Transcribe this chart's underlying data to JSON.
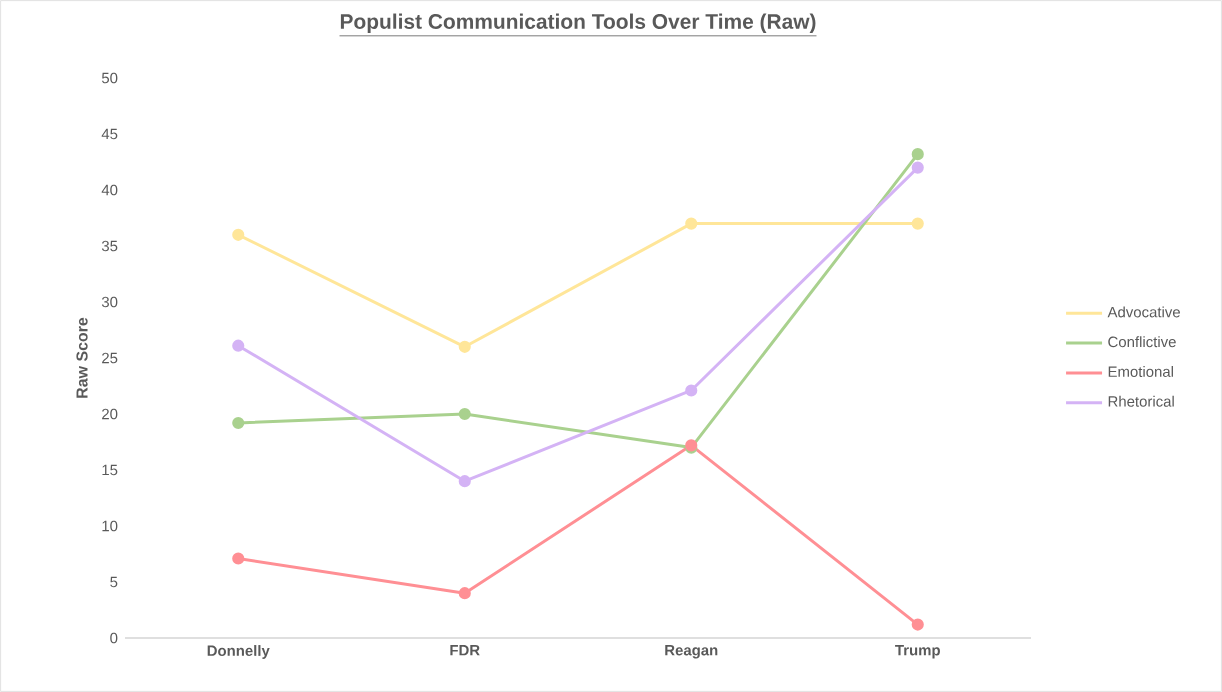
{
  "chart_data": {
    "type": "line",
    "title": "Populist Communication Tools Over Time (Raw)",
    "ylabel": "Raw Score",
    "categories": [
      "Donnelly",
      "FDR",
      "Reagan",
      "Trump"
    ],
    "series": [
      {
        "name": "Advocative",
        "color": "#ffe699",
        "values": [
          36,
          26,
          37,
          37
        ]
      },
      {
        "name": "Conflictive",
        "color": "#a9d18e",
        "values": [
          19.2,
          20,
          17,
          43.2
        ]
      },
      {
        "name": "Emotional",
        "color": "#ff8f94",
        "values": [
          7.1,
          4,
          17.2,
          1.2
        ]
      },
      {
        "name": "Rhetorical",
        "color": "#d4b3f5",
        "values": [
          26.1,
          14,
          22.1,
          42
        ]
      }
    ],
    "ylim": [
      0,
      50
    ],
    "yticks": [
      0,
      5,
      10,
      15,
      20,
      25,
      30,
      35,
      40,
      45,
      50
    ],
    "grid": false,
    "legend": "right",
    "marker": "circle",
    "line_style": "solid"
  }
}
